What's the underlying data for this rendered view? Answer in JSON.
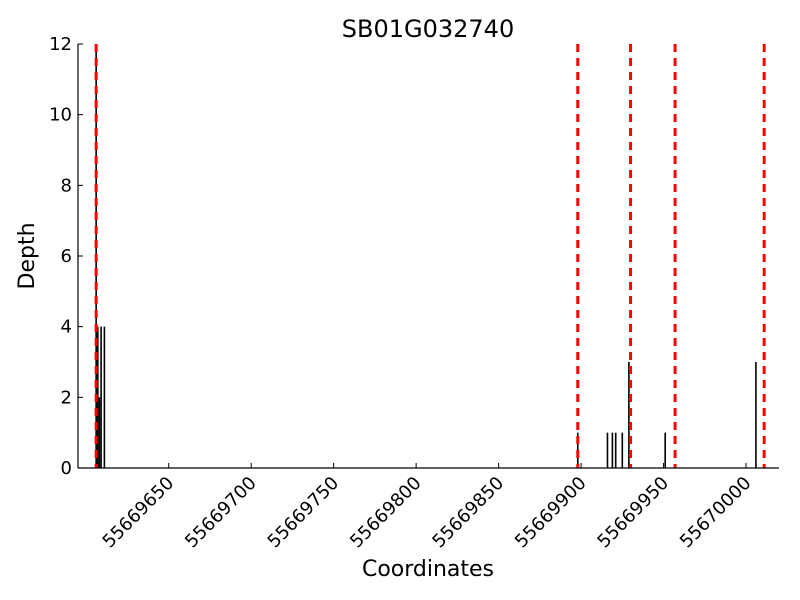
{
  "chart_data": {
    "type": "bar",
    "title": "SB01G032740",
    "xlabel": "Coordinates",
    "ylabel": "Depth",
    "xlim": [
      55669595,
      55670020
    ],
    "ylim": [
      0,
      12
    ],
    "xticks": [
      55669650,
      55669700,
      55669750,
      55669800,
      55669850,
      55669900,
      55669950,
      55670000
    ],
    "yticks": [
      0,
      2,
      4,
      6,
      8,
      10,
      12
    ],
    "bars": [
      {
        "x": 55669606,
        "y": 12
      },
      {
        "x": 55669607,
        "y": 4
      },
      {
        "x": 55669608,
        "y": 2
      },
      {
        "x": 55669609,
        "y": 4
      },
      {
        "x": 55669611,
        "y": 4
      },
      {
        "x": 55669898,
        "y": 1
      },
      {
        "x": 55669916,
        "y": 1
      },
      {
        "x": 55669919,
        "y": 1
      },
      {
        "x": 55669921,
        "y": 1
      },
      {
        "x": 55669925,
        "y": 1
      },
      {
        "x": 55669929,
        "y": 3
      },
      {
        "x": 55669951,
        "y": 1
      },
      {
        "x": 55670006,
        "y": 3
      }
    ],
    "vlines": [
      55669606,
      55669898,
      55669930,
      55669957,
      55670011
    ],
    "colors": {
      "bars": "#000000",
      "vlines": "#ff0000"
    }
  }
}
